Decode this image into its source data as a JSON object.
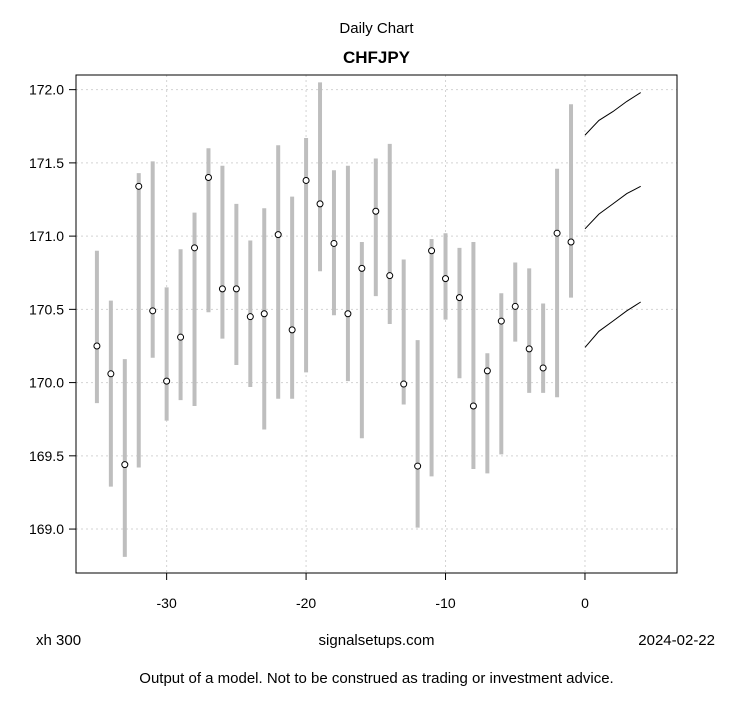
{
  "header": {
    "supertitle": "Daily Chart",
    "title": "CHFJPY"
  },
  "footer": {
    "left": "xh 300",
    "center": "signalsetups.com",
    "right": "2024-02-22",
    "disclaimer": "Output of a model. Not to be construed as trading or investment advice."
  },
  "chart_data": {
    "type": "scatter",
    "title": "CHFJPY",
    "xlim": [
      -36.5,
      6.6
    ],
    "ylim": [
      168.7,
      172.1
    ],
    "x_ticks": [
      -30,
      -20,
      -10,
      0
    ],
    "y_ticks": [
      169.0,
      169.5,
      170.0,
      170.5,
      171.0,
      171.5,
      172.0
    ],
    "y_tick_labels": [
      "169.0",
      "169.5",
      "170.0",
      "170.5",
      "171.0",
      "171.5",
      "172.0"
    ],
    "grid": true,
    "colors": {
      "range_bar": "#bebebe",
      "grid": "#d3d3d3",
      "forecast": "#000000"
    },
    "series": [
      {
        "name": "",
        "points": [
          {
            "x": -35,
            "close": 170.25,
            "low": 169.86,
            "high": 170.9
          },
          {
            "x": -34,
            "close": 170.06,
            "low": 169.29,
            "high": 170.56
          },
          {
            "x": -33,
            "close": 169.44,
            "low": 168.81,
            "high": 170.16
          },
          {
            "x": -32,
            "close": 171.34,
            "low": 169.42,
            "high": 171.43
          },
          {
            "x": -31,
            "close": 170.49,
            "low": 170.17,
            "high": 171.51
          },
          {
            "x": -30,
            "close": 170.01,
            "low": 169.74,
            "high": 170.65
          },
          {
            "x": -29,
            "close": 170.31,
            "low": 169.88,
            "high": 170.91
          },
          {
            "x": -28,
            "close": 170.92,
            "low": 169.84,
            "high": 171.16
          },
          {
            "x": -27,
            "close": 171.4,
            "low": 170.48,
            "high": 171.6
          },
          {
            "x": -26,
            "close": 170.64,
            "low": 170.3,
            "high": 171.48
          },
          {
            "x": -25,
            "close": 170.64,
            "low": 170.12,
            "high": 171.22
          },
          {
            "x": -24,
            "close": 170.45,
            "low": 169.97,
            "high": 170.97
          },
          {
            "x": -23,
            "close": 170.47,
            "low": 169.68,
            "high": 171.19
          },
          {
            "x": -22,
            "close": 171.01,
            "low": 169.89,
            "high": 171.62
          },
          {
            "x": -21,
            "close": 170.36,
            "low": 169.89,
            "high": 171.27
          },
          {
            "x": -20,
            "close": 171.38,
            "low": 170.07,
            "high": 171.67
          },
          {
            "x": -19,
            "close": 171.22,
            "low": 170.76,
            "high": 172.05
          },
          {
            "x": -18,
            "close": 170.95,
            "low": 170.46,
            "high": 171.45
          },
          {
            "x": -17,
            "close": 170.47,
            "low": 170.01,
            "high": 171.48
          },
          {
            "x": -16,
            "close": 170.78,
            "low": 169.62,
            "high": 170.96
          },
          {
            "x": -15,
            "close": 171.17,
            "low": 170.59,
            "high": 171.53
          },
          {
            "x": -14,
            "close": 170.73,
            "low": 170.4,
            "high": 171.63
          },
          {
            "x": -13,
            "close": 169.99,
            "low": 169.85,
            "high": 170.84
          },
          {
            "x": -12,
            "close": 169.43,
            "low": 169.01,
            "high": 170.29
          },
          {
            "x": -11,
            "close": 170.9,
            "low": 169.36,
            "high": 170.98
          },
          {
            "x": -10,
            "close": 170.71,
            "low": 170.43,
            "high": 171.02
          },
          {
            "x": -9,
            "close": 170.58,
            "low": 170.03,
            "high": 170.92
          },
          {
            "x": -8,
            "close": 169.84,
            "low": 169.41,
            "high": 170.96
          },
          {
            "x": -7,
            "close": 170.08,
            "low": 169.38,
            "high": 170.2
          },
          {
            "x": -6,
            "close": 170.42,
            "low": 169.51,
            "high": 170.61
          },
          {
            "x": -5,
            "close": 170.52,
            "low": 170.28,
            "high": 170.82
          },
          {
            "x": -4,
            "close": 170.23,
            "low": 169.93,
            "high": 170.78
          },
          {
            "x": -3,
            "close": 170.1,
            "low": 169.93,
            "high": 170.54
          },
          {
            "x": -2,
            "close": 171.02,
            "low": 169.9,
            "high": 171.46
          },
          {
            "x": -1,
            "close": 170.96,
            "low": 170.58,
            "high": 171.9
          }
        ]
      }
    ],
    "forecast_lines": [
      {
        "name": "",
        "x": [
          0,
          1,
          2,
          3,
          4
        ],
        "y": [
          171.69,
          171.79,
          171.85,
          171.92,
          171.98
        ]
      },
      {
        "name": "",
        "x": [
          0,
          1,
          2,
          3,
          4
        ],
        "y": [
          171.05,
          171.15,
          171.22,
          171.29,
          171.34
        ]
      },
      {
        "name": "",
        "x": [
          0,
          1,
          2,
          3,
          4
        ],
        "y": [
          170.24,
          170.35,
          170.42,
          170.49,
          170.55
        ]
      }
    ]
  }
}
